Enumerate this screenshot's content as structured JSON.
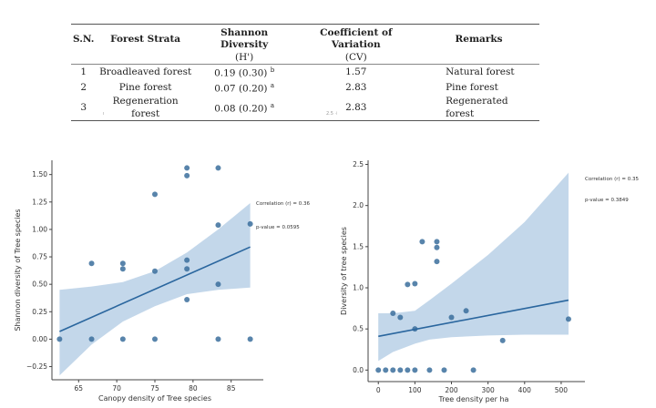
{
  "table": {
    "headers": [
      {
        "line1": "S.N.",
        "line2": ""
      },
      {
        "line1": "Forest Strata",
        "line2": ""
      },
      {
        "line1": "Shannon Diversity",
        "line2": "(H')"
      },
      {
        "line1": "Coefficient of Variation",
        "line2": "(CV)"
      },
      {
        "line1": "Remarks",
        "line2": ""
      }
    ],
    "rows": [
      {
        "sn": "1",
        "strata": "Broadleaved forest",
        "shannon": "0.19 (0.30)",
        "sup": "b",
        "cv": "1.57",
        "remarks": "Natural forest"
      },
      {
        "sn": "2",
        "strata": "Pine forest",
        "shannon": "0.07 (0.20)",
        "sup": "a",
        "cv": "2.83",
        "remarks": "Pine forest"
      },
      {
        "sn": "3",
        "strata": "Regeneration forest",
        "shannon": "0.08 (0.20)",
        "sup": "a",
        "cv": "2.83",
        "remarks": "Regenerated forest"
      }
    ]
  },
  "artifacts": {
    "left_mark": "ı",
    "right_mark": "2.5 ˧"
  },
  "chart_data": [
    {
      "type": "scatter",
      "title": "",
      "xlabel": "Canopy density of Tree species",
      "ylabel": "Shannon diversity of Tree species",
      "xlim": [
        61.5,
        88.5
      ],
      "ylim": [
        -0.37,
        1.63
      ],
      "xticks": [
        65,
        70,
        75,
        80,
        85
      ],
      "yticks": [
        -0.25,
        0.0,
        0.25,
        0.5,
        0.75,
        1.0,
        1.25,
        1.5
      ],
      "ytick_labels": [
        "−0.25",
        "0.00",
        "0.25",
        "0.50",
        "0.75",
        "1.00",
        "1.25",
        "1.50"
      ],
      "points": [
        [
          62.5,
          0.0
        ],
        [
          66.7,
          0.69
        ],
        [
          66.7,
          0.0
        ],
        [
          70.8,
          0.69
        ],
        [
          70.8,
          0.64
        ],
        [
          70.8,
          0.0
        ],
        [
          75.0,
          1.32
        ],
        [
          75.0,
          0.62
        ],
        [
          75.0,
          0.0
        ],
        [
          79.2,
          1.56
        ],
        [
          79.2,
          1.49
        ],
        [
          79.2,
          0.72
        ],
        [
          79.2,
          0.64
        ],
        [
          79.2,
          0.36
        ],
        [
          83.3,
          1.56
        ],
        [
          83.3,
          1.04
        ],
        [
          83.3,
          0.5
        ],
        [
          83.3,
          0.0
        ],
        [
          87.5,
          1.05
        ],
        [
          87.5,
          0.0
        ]
      ],
      "regression": {
        "x": [
          62.5,
          87.5
        ],
        "y": [
          0.07,
          0.84
        ]
      },
      "ci_band": {
        "x": [
          62.5,
          66.7,
          70.8,
          75.0,
          79.2,
          83.3,
          87.5
        ],
        "upper": [
          0.45,
          0.48,
          0.52,
          0.62,
          0.79,
          1.0,
          1.24
        ],
        "lower": [
          -0.33,
          -0.05,
          0.16,
          0.3,
          0.41,
          0.45,
          0.47
        ]
      },
      "annotations": [
        "Correlation (r) = 0.36",
        "p-value = 0.0595"
      ],
      "colors": {
        "point": "#3b6f9c",
        "line": "#2a669e",
        "band": "#b9d0e6"
      }
    },
    {
      "type": "scatter",
      "title": "",
      "xlabel": "Tree density per ha",
      "ylabel": "Diversity of tree species",
      "xlim": [
        -28,
        550
      ],
      "ylim": [
        -0.14,
        2.55
      ],
      "xticks": [
        0,
        100,
        200,
        300,
        400,
        500
      ],
      "yticks": [
        0.0,
        0.5,
        1.0,
        1.5,
        2.0,
        2.5
      ],
      "ytick_labels": [
        "0.0",
        "0.5",
        "1.0",
        "1.5",
        "2.0",
        "2.5"
      ],
      "points": [
        [
          0,
          0.0
        ],
        [
          20,
          0.0
        ],
        [
          40,
          0.0
        ],
        [
          60,
          0.0
        ],
        [
          80,
          0.0
        ],
        [
          100,
          0.0
        ],
        [
          140,
          0.0
        ],
        [
          180,
          0.0
        ],
        [
          260,
          0.0
        ],
        [
          40,
          0.69
        ],
        [
          60,
          0.64
        ],
        [
          80,
          1.04
        ],
        [
          100,
          1.05
        ],
        [
          100,
          0.5
        ],
        [
          120,
          1.56
        ],
        [
          160,
          1.56
        ],
        [
          160,
          1.49
        ],
        [
          160,
          1.32
        ],
        [
          200,
          0.64
        ],
        [
          240,
          0.72
        ],
        [
          340,
          0.36
        ],
        [
          520,
          0.62
        ]
      ],
      "regression": {
        "x": [
          0,
          520
        ],
        "y": [
          0.41,
          0.85
        ]
      },
      "ci_band": {
        "x": [
          0,
          40,
          100,
          140,
          200,
          300,
          400,
          520
        ],
        "upper": [
          0.69,
          0.69,
          0.72,
          0.85,
          1.05,
          1.4,
          1.8,
          2.4
        ],
        "lower": [
          0.11,
          0.22,
          0.32,
          0.37,
          0.4,
          0.42,
          0.43,
          0.43
        ]
      },
      "annotations": [
        "Correlation (r) = 0.35",
        "p-value = 0.3849"
      ],
      "colors": {
        "point": "#3b6f9c",
        "line": "#2a669e",
        "band": "#b9d0e6"
      }
    }
  ]
}
